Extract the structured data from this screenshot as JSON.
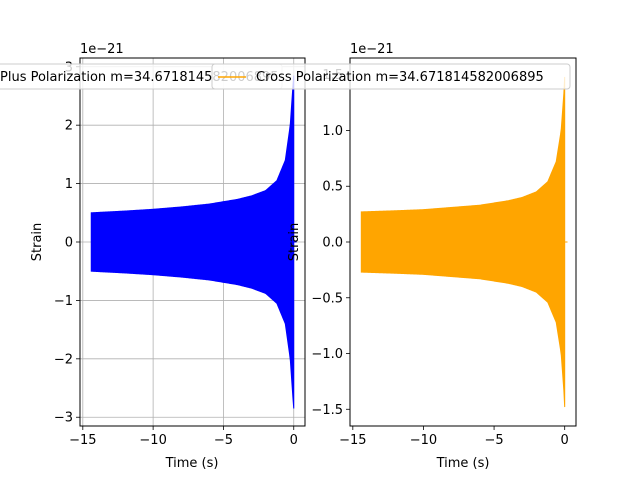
{
  "chart_data": [
    {
      "type": "line",
      "series": [
        {
          "name": "Plus Polarization m=34.671814582006895",
          "color": "#0000ff",
          "envelope": {
            "x": [
              -14.4,
              -12,
              -10,
              -8,
              -6,
              -4,
              -3,
              -2,
              -1.2,
              -0.6,
              -0.25,
              -0.05,
              0
            ],
            "amp": [
              0.5,
              0.53,
              0.56,
              0.6,
              0.65,
              0.73,
              0.79,
              0.88,
              1.05,
              1.4,
              2.0,
              2.7,
              2.85
            ]
          }
        }
      ],
      "xlabel": "Time (s)",
      "ylabel": "Strain",
      "offset_text": "1e−21",
      "xlim": [
        -15.2,
        0.8
      ],
      "ylim": [
        -3.15,
        3.15
      ],
      "xticks": [
        -15,
        -10,
        -5,
        0
      ],
      "yticks": [
        -3,
        -2,
        -1,
        0,
        1,
        2,
        3
      ],
      "xtick_labels": [
        "−15",
        "−10",
        "−5",
        "0"
      ],
      "ytick_labels": [
        "−3",
        "−2",
        "−1",
        "0",
        "1",
        "2",
        "3"
      ],
      "grid": true,
      "legend_position": "top"
    },
    {
      "type": "line",
      "series": [
        {
          "name": "Cross Polarization m=34.671814582006895",
          "color": "#ffa500",
          "envelope": {
            "x": [
              -14.4,
              -12,
              -10,
              -8,
              -6,
              -4,
              -3,
              -2,
              -1.2,
              -0.6,
              -0.25,
              -0.05,
              0
            ],
            "amp": [
              0.27,
              0.28,
              0.29,
              0.31,
              0.33,
              0.37,
              0.4,
              0.45,
              0.54,
              0.72,
              1.0,
              1.35,
              1.48
            ]
          }
        }
      ],
      "xlabel": "Time (s)",
      "ylabel": "Strain",
      "offset_text": "1e−21",
      "xlim": [
        -15.2,
        0.8
      ],
      "ylim": [
        -1.65,
        1.65
      ],
      "xticks": [
        -15,
        -10,
        -5,
        0
      ],
      "yticks": [
        -1.5,
        -1.0,
        -0.5,
        0.0,
        0.5,
        1.0,
        1.5
      ],
      "xtick_labels": [
        "−15",
        "−10",
        "−5",
        "0"
      ],
      "ytick_labels": [
        "−1.5",
        "−1.0",
        "−0.5",
        "0.0",
        "0.5",
        "1.0",
        "1.5"
      ],
      "grid": false,
      "legend_position": "top"
    }
  ]
}
